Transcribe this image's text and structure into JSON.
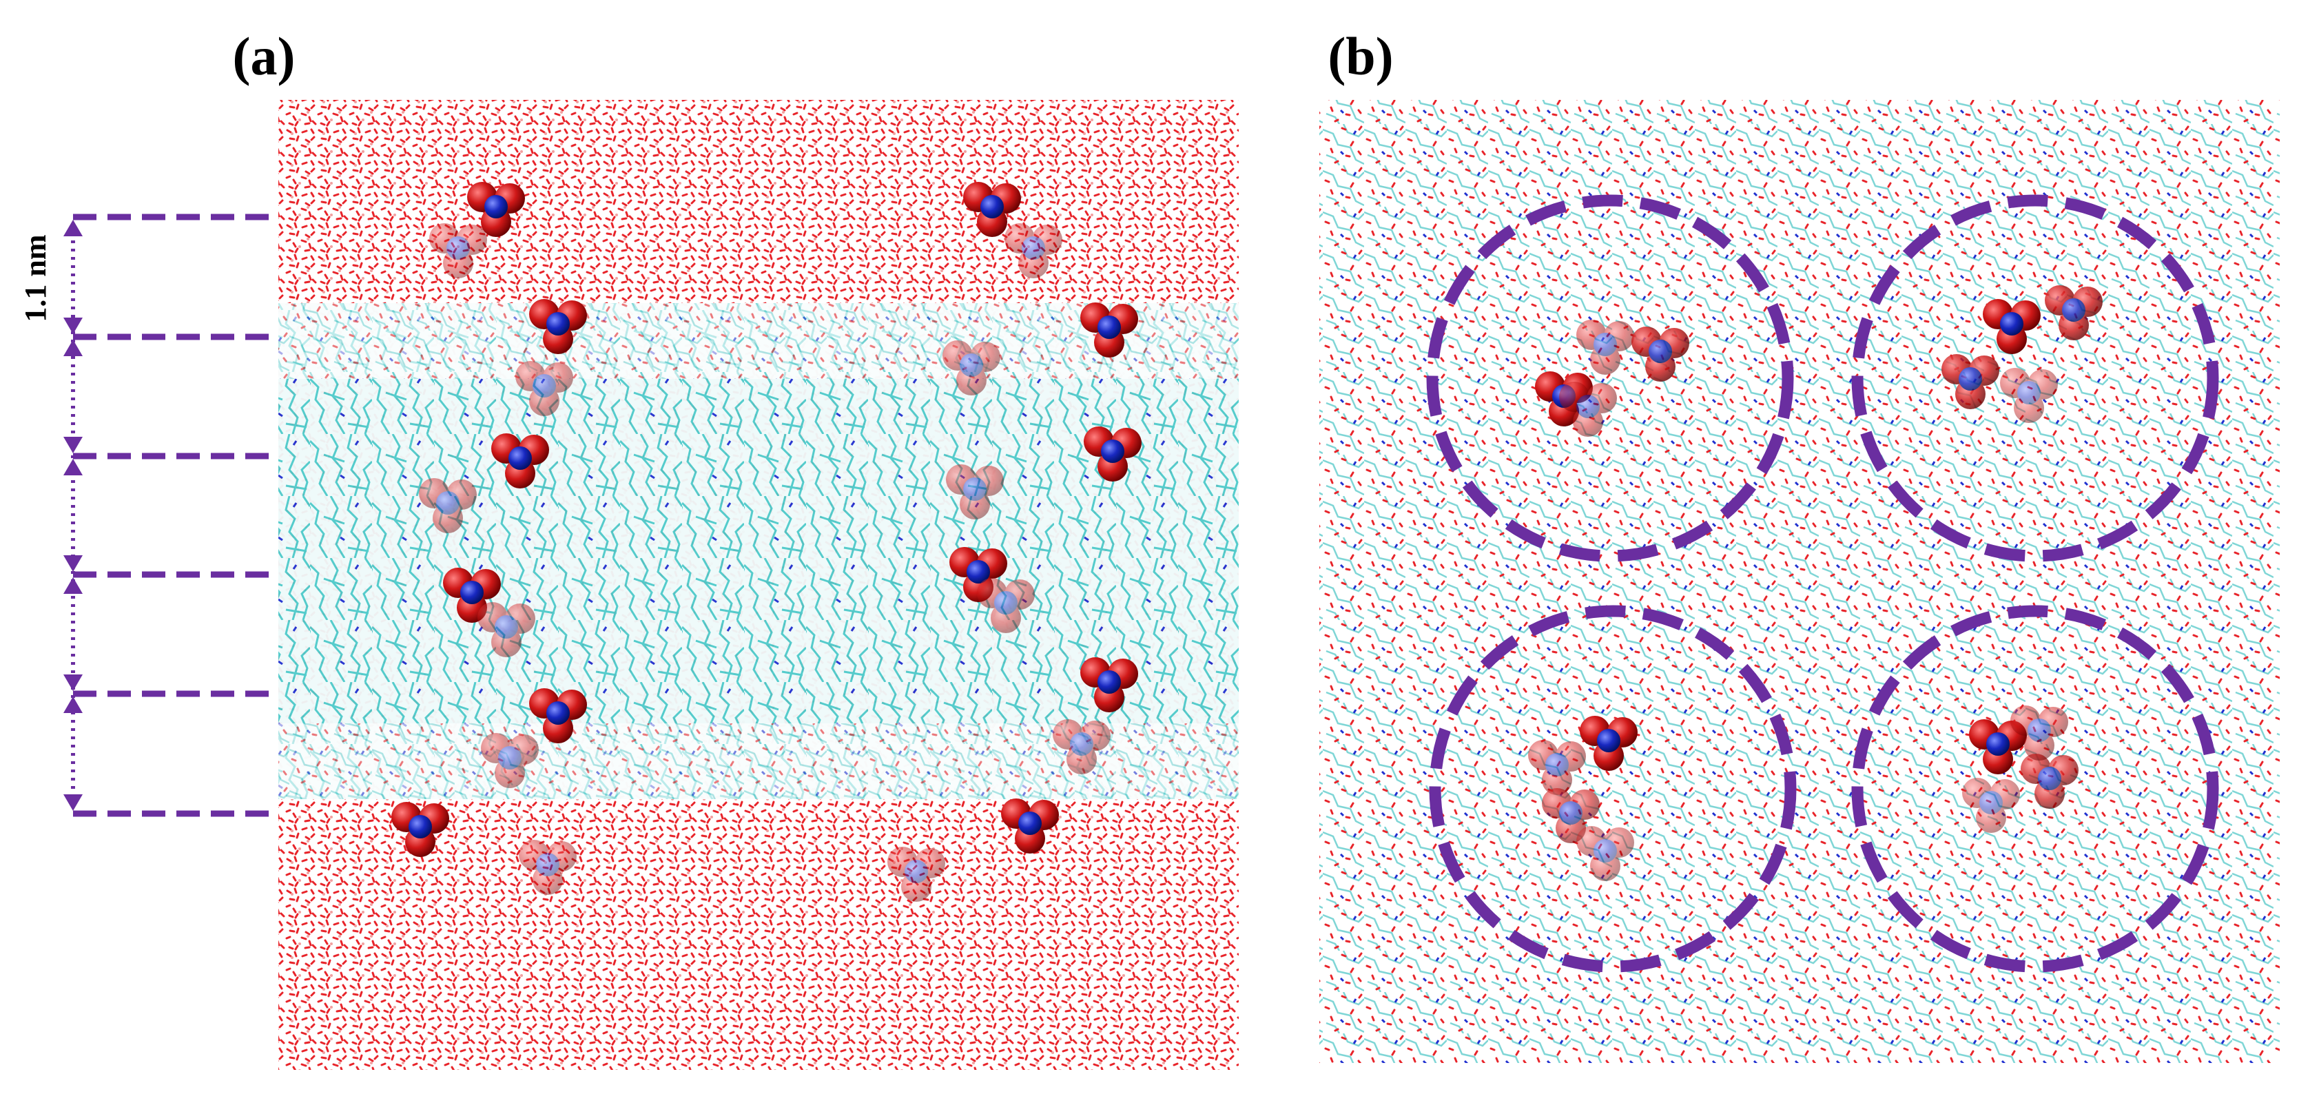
{
  "panels": [
    {
      "label": "(a)",
      "scale_label": "1.1 nm"
    },
    {
      "label": "(b)"
    }
  ]
}
